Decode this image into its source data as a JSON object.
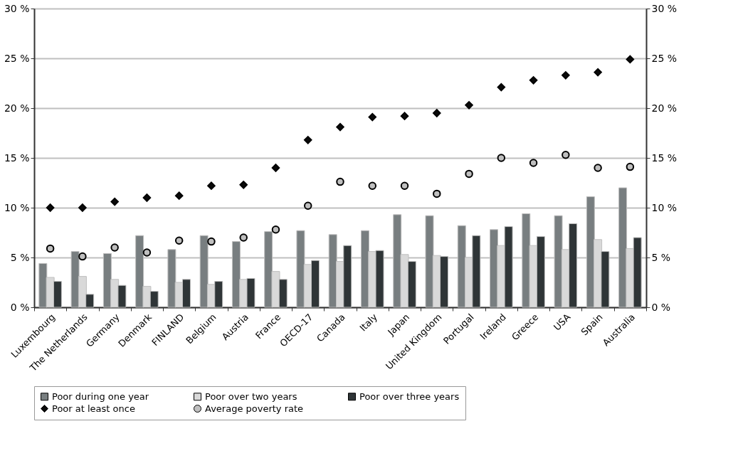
{
  "chart_data": {
    "type": "bar",
    "categories": [
      "Luxembourg",
      "The Netherlands",
      "Germany",
      "Denmark",
      "FINLAND",
      "Belgium",
      "Austria",
      "France",
      "OECD-17",
      "Canada",
      "Italy",
      "Japan",
      "United Kingdom",
      "Portugal",
      "Ireland",
      "Greece",
      "USA",
      "Spain",
      "Australia"
    ],
    "series": [
      {
        "name": "Poor during one year",
        "color": "#787e80",
        "values": [
          4.4,
          5.6,
          5.4,
          7.2,
          5.8,
          7.2,
          6.6,
          7.6,
          7.7,
          7.3,
          7.7,
          9.3,
          9.2,
          8.2,
          7.8,
          9.4,
          9.2,
          11.1,
          12.0
        ]
      },
      {
        "name": "Poor over two years",
        "color": "#d9d9d9",
        "values": [
          3.0,
          3.1,
          2.8,
          2.1,
          2.5,
          2.3,
          2.8,
          3.6,
          4.3,
          4.6,
          5.6,
          5.3,
          5.2,
          5.0,
          6.2,
          6.2,
          5.8,
          6.8,
          5.9
        ]
      },
      {
        "name": "Poor over three years",
        "color": "#2f3537",
        "values": [
          2.6,
          1.3,
          2.2,
          1.6,
          2.8,
          2.6,
          2.9,
          2.8,
          4.7,
          6.2,
          5.7,
          4.6,
          5.1,
          7.2,
          8.1,
          7.1,
          8.4,
          5.6,
          7.0
        ]
      },
      {
        "name": "Poor at least once",
        "type": "scatter",
        "marker": "diamond",
        "color": "#0a0a0a",
        "values": [
          10.0,
          10.0,
          10.6,
          11.0,
          11.2,
          12.2,
          12.3,
          14.0,
          16.8,
          18.1,
          19.1,
          19.2,
          19.5,
          20.3,
          22.1,
          22.8,
          23.3,
          23.6,
          24.9
        ]
      },
      {
        "name": "Average poverty rate",
        "type": "scatter",
        "marker": "circle",
        "color": "#bfbfbf",
        "values": [
          5.9,
          5.1,
          6.0,
          5.5,
          6.7,
          6.6,
          7.0,
          7.8,
          10.2,
          12.6,
          12.2,
          12.2,
          11.4,
          13.4,
          15.0,
          14.5,
          15.3,
          14.0,
          14.1
        ]
      }
    ],
    "ylim": [
      0,
      30
    ],
    "yticks": [
      {
        "value": 0,
        "label": "0 %"
      },
      {
        "value": 5,
        "label": "5 %"
      },
      {
        "value": 10,
        "label": "10 %"
      },
      {
        "value": 15,
        "label": "15 %"
      },
      {
        "value": 20,
        "label": "20 %"
      },
      {
        "value": 25,
        "label": "25 %"
      },
      {
        "value": 30,
        "label": "30 %"
      }
    ],
    "y2lim": [
      0,
      30
    ],
    "y2ticks": [
      {
        "value": 0,
        "label": "0 %"
      },
      {
        "value": 5,
        "label": "5 %"
      },
      {
        "value": 10,
        "label": "10 %"
      },
      {
        "value": 15,
        "label": "15 %"
      },
      {
        "value": 20,
        "label": "20 %"
      },
      {
        "value": 25,
        "label": "25 %"
      },
      {
        "value": 30,
        "label": "30 %"
      }
    ],
    "grid": "y",
    "legend": "bottom"
  }
}
